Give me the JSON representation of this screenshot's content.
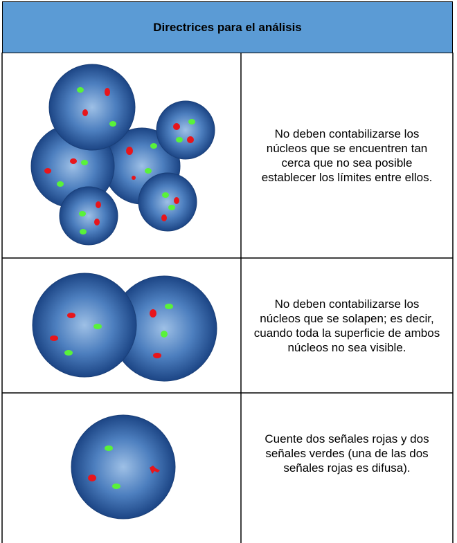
{
  "header": {
    "title": "Directrices para el análisis"
  },
  "rows": [
    {
      "text": "No deben contabilizarse los núcleos que se encuentren tan cerca que no sea posible establecer los límites entre ellos."
    },
    {
      "text": "No deben contabilizarse los núcleos que se solapen; es decir, cuando toda la superficie de ambos núcleos no sea visible."
    },
    {
      "text": "Cuente dos señales rojas y dos señales verdes (una de las dos señales rojas es difusa)."
    }
  ]
}
